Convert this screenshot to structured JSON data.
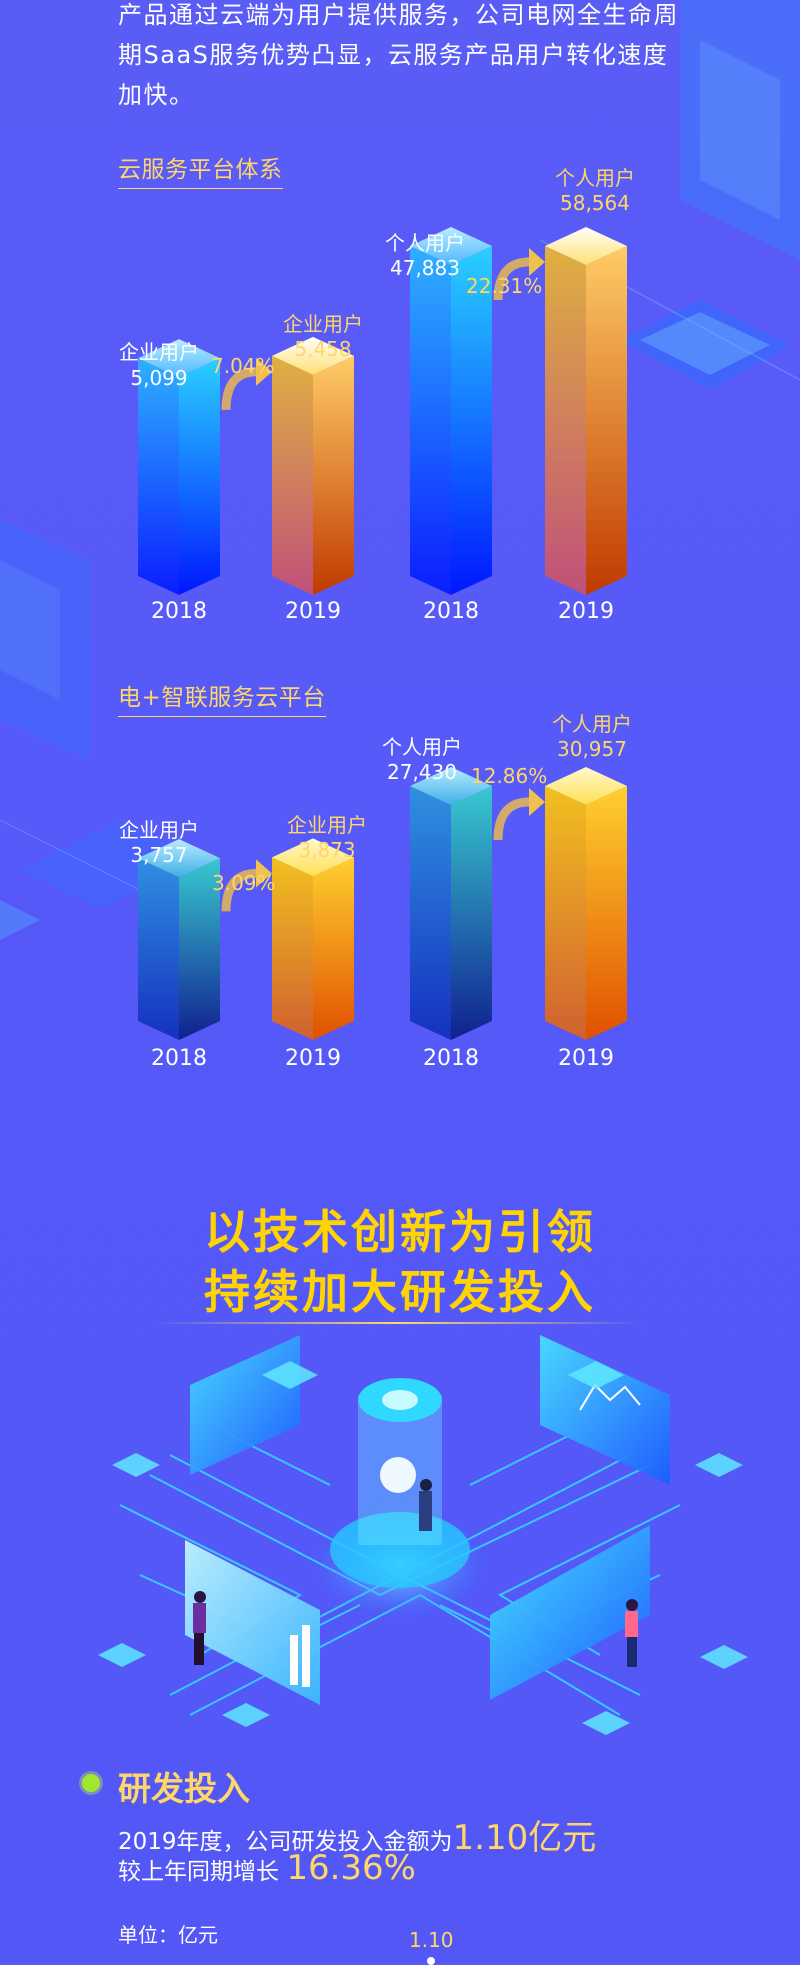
{
  "intro": {
    "lines": [
      "产品通过云端为用户提供服务，公司电网全生命周",
      "期SaaS服务优势凸显，云服务产品用户转化速度",
      "加快。"
    ]
  },
  "colors": {
    "background": "#5559f8",
    "accent_gold": "#ffd668",
    "title_yellow": "#ffd400",
    "bar_blue": "#1a3cff",
    "bar_orange": "#e06a20"
  },
  "chart_data": [
    {
      "type": "bar",
      "title": "云服务平台体系",
      "categories": [
        "2018",
        "2019",
        "2018",
        "2019"
      ],
      "bars": [
        {
          "group": "企业用户",
          "year": "2018",
          "value": 5099,
          "label": "5,099"
        },
        {
          "group": "企业用户",
          "year": "2019",
          "value": 5458,
          "label": "5,458"
        },
        {
          "group": "个人用户",
          "year": "2018",
          "value": 47883,
          "label": "47,883"
        },
        {
          "group": "个人用户",
          "year": "2019",
          "value": 58564,
          "label": "58,564"
        }
      ],
      "growth": [
        "7.04%",
        "22.31%"
      ]
    },
    {
      "type": "bar",
      "title": "电+智联服务云平台",
      "categories": [
        "2018",
        "2019",
        "2018",
        "2019"
      ],
      "bars": [
        {
          "group": "企业用户",
          "year": "2018",
          "value": 3757,
          "label": "3,757"
        },
        {
          "group": "企业用户",
          "year": "2019",
          "value": 3873,
          "label": "3,873"
        },
        {
          "group": "个人用户",
          "year": "2018",
          "value": 27430,
          "label": "27,430"
        },
        {
          "group": "个人用户",
          "year": "2019",
          "value": 30957,
          "label": "30,957"
        }
      ],
      "growth": [
        "3.09%",
        "12.86%"
      ]
    }
  ],
  "headline": {
    "line1": "以技术创新为引领",
    "line2": "持续加大研发投入"
  },
  "rd": {
    "heading": "研发投入",
    "line1_prefix": "2019年度，公司研发投入金额为",
    "line1_amount": "1.10亿元",
    "line2_prefix": "较上年同期增长 ",
    "line2_growth": "16.36%",
    "unit": "单位：亿元",
    "chart_value": "1.10"
  }
}
